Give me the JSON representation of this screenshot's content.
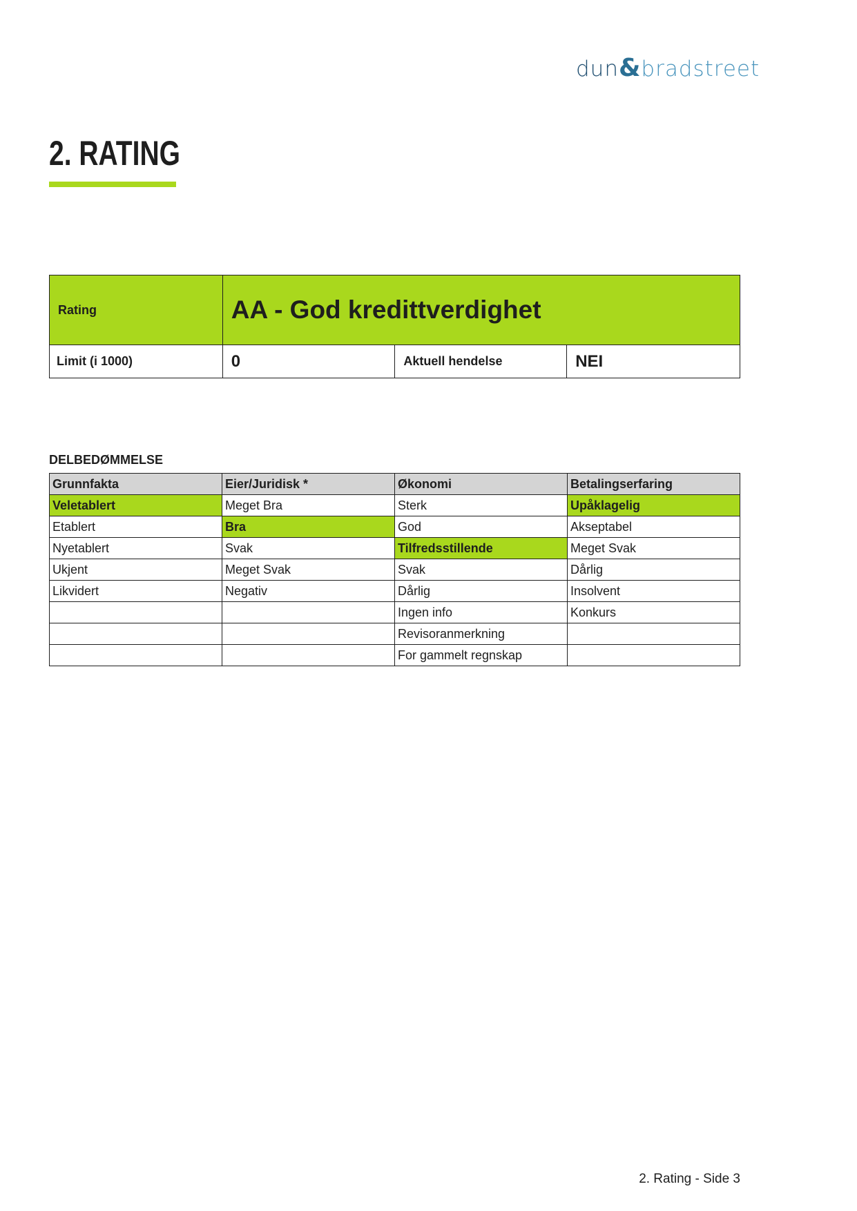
{
  "logo": {
    "part1": "dun",
    "amp": "&",
    "part2": "bradstreet"
  },
  "title": "2. RATING",
  "rating_table": {
    "rating_label": "Rating",
    "rating_value": "AA - God kredittverdighet",
    "limit_label": "Limit (i 1000)",
    "limit_value": "0",
    "event_label": "Aktuell hendelse",
    "event_value": "NEI"
  },
  "subratings": {
    "heading": "DELBEDØMMELSE",
    "columns": [
      "Grunnfakta",
      "Eier/Juridisk *",
      "Økonomi",
      "Betalingserfaring"
    ],
    "rows": [
      [
        "Veletablert",
        "Meget Bra",
        "Sterk",
        "Upåklagelig"
      ],
      [
        "Etablert",
        "Bra",
        "God",
        "Akseptabel"
      ],
      [
        "Nyetablert",
        "Svak",
        "Tilfredsstillende",
        "Meget Svak"
      ],
      [
        "Ukjent",
        "Meget Svak",
        "Svak",
        "Dårlig"
      ],
      [
        "Likvidert",
        "Negativ",
        "Dårlig",
        "Insolvent"
      ],
      [
        "",
        "",
        "Ingen info",
        "Konkurs"
      ],
      [
        "",
        "",
        "Revisoranmerkning",
        ""
      ],
      [
        "",
        "",
        "For gammelt regnskap",
        ""
      ]
    ],
    "selected": {
      "Grunnfakta": "Veletablert",
      "Eier/Juridisk *": "Bra",
      "Økonomi": "Tilfredsstillende",
      "Betalingserfaring": "Upåklagelig"
    }
  },
  "colors": {
    "accent": "#a9d81d",
    "header_bg": "#d4d4d4",
    "logo_dark": "#1f4e70",
    "logo_light": "#4a95bd"
  },
  "footer": "2. Rating - Side 3"
}
